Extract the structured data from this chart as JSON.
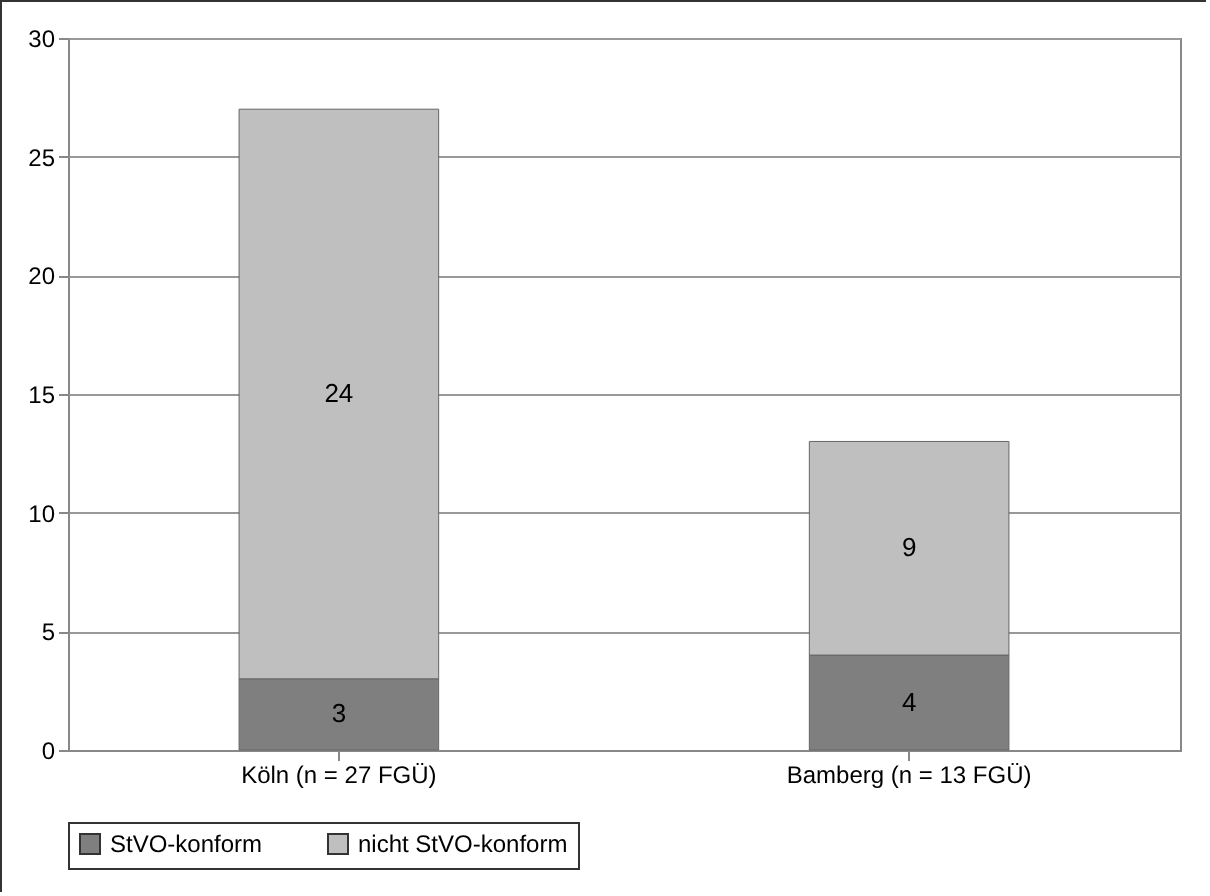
{
  "chart_data": {
    "type": "bar",
    "stacked": true,
    "categories": [
      "Köln (n = 27 FGÜ)",
      "Bamberg (n = 13 FGÜ)"
    ],
    "series": [
      {
        "name": "StVO-konform",
        "color": "#7f7f7f",
        "values": [
          3,
          4
        ]
      },
      {
        "name": "nicht StVO-konform",
        "color": "#bfbfbf",
        "values": [
          24,
          9
        ]
      }
    ],
    "ylim": [
      0,
      30
    ],
    "yticks": [
      0,
      5,
      10,
      15,
      20,
      25,
      30
    ],
    "grid": "y",
    "legend": "bottom",
    "data_labels": true
  }
}
